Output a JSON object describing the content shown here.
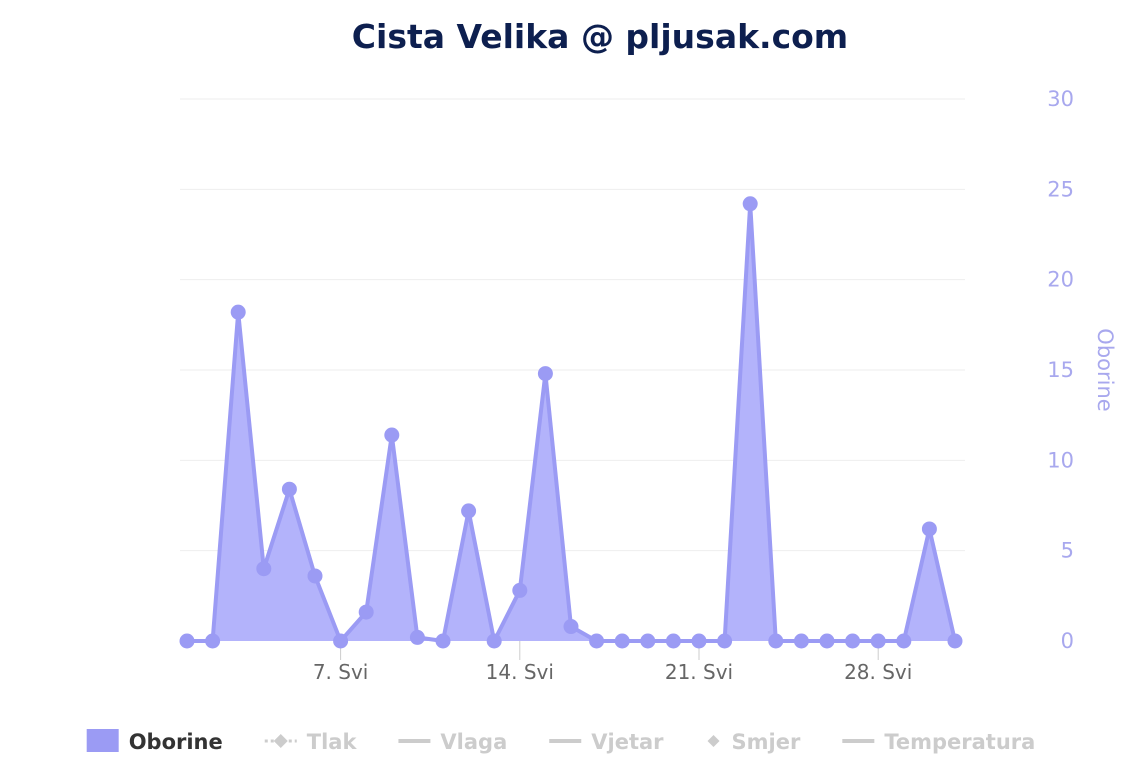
{
  "chart_data": {
    "type": "area",
    "title": "Cista Velika @ pljusak.com",
    "ylabel": "Oborine",
    "xlabel": "",
    "ylim": [
      0,
      30
    ],
    "yticks": [
      0,
      5,
      10,
      15,
      20,
      25,
      30
    ],
    "y_axis_position": "right",
    "grid": true,
    "x_tick_labels": [
      {
        "label": "7. Svi",
        "at": 7
      },
      {
        "label": "14. Svi",
        "at": 14
      },
      {
        "label": "21. Svi",
        "at": 21
      },
      {
        "label": "28. Svi",
        "at": 28
      }
    ],
    "series": [
      {
        "name": "Oborine",
        "color": "#9b9bf4",
        "x": [
          1,
          2,
          3,
          4,
          5,
          6,
          7,
          8,
          9,
          10,
          11,
          12,
          13,
          14,
          15,
          16,
          17,
          18,
          19,
          20,
          21,
          22,
          23,
          24,
          25,
          26,
          27,
          28,
          29,
          30,
          31
        ],
        "values": [
          0,
          0,
          18.2,
          4,
          8.4,
          3.6,
          0,
          1.6,
          11.4,
          0.2,
          0,
          7.2,
          0,
          2.8,
          14.8,
          0.8,
          0,
          0,
          0,
          0,
          0,
          0,
          24.2,
          0,
          0,
          0,
          0,
          0,
          0,
          6.2,
          0
        ]
      }
    ],
    "legend": {
      "placement": "bottom",
      "items": [
        {
          "name": "Oborine",
          "active": true,
          "symbol": "area"
        },
        {
          "name": "Tlak",
          "active": false,
          "symbol": "dashed-diamond"
        },
        {
          "name": "Vlaga",
          "active": false,
          "symbol": "line"
        },
        {
          "name": "Vjetar",
          "active": false,
          "symbol": "line"
        },
        {
          "name": "Smjer",
          "active": false,
          "symbol": "diamond"
        },
        {
          "name": "Temperatura",
          "active": false,
          "symbol": "line"
        }
      ]
    }
  },
  "colors": {
    "series": "#9b9bf4",
    "area_fill": "#b3b3fb",
    "title": "#0d1f4f",
    "axis_label": "#a8a8ee",
    "x_tick": "#666666",
    "grid": "#eeeeee",
    "legend_inactive": "#cccccc",
    "legend_active": "#333333"
  }
}
